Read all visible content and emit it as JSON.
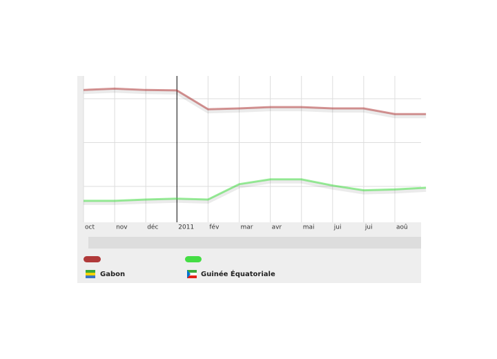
{
  "chart_data": {
    "type": "line",
    "categories": [
      "oct",
      "nov",
      "déc",
      "2011",
      "fév",
      "mar",
      "avr",
      "mai",
      "jui",
      "jui",
      "aoû",
      null
    ],
    "series": [
      {
        "name": "Gabon",
        "color": "#b03a3a",
        "values": [
          3.2,
          3.23,
          3.2,
          3.19,
          2.76,
          2.78,
          2.81,
          2.81,
          2.78,
          2.78,
          2.65,
          2.65
        ]
      },
      {
        "name": "Guinée Équatoriale",
        "color": "#44dd44",
        "values": [
          0.67,
          0.67,
          0.7,
          0.72,
          0.7,
          1.05,
          1.16,
          1.16,
          1.02,
          0.91,
          0.93,
          0.97
        ]
      }
    ],
    "ylim": [
      0.18,
      3.52
    ],
    "yticks": [
      1,
      2,
      3
    ],
    "grid": true
  }
}
